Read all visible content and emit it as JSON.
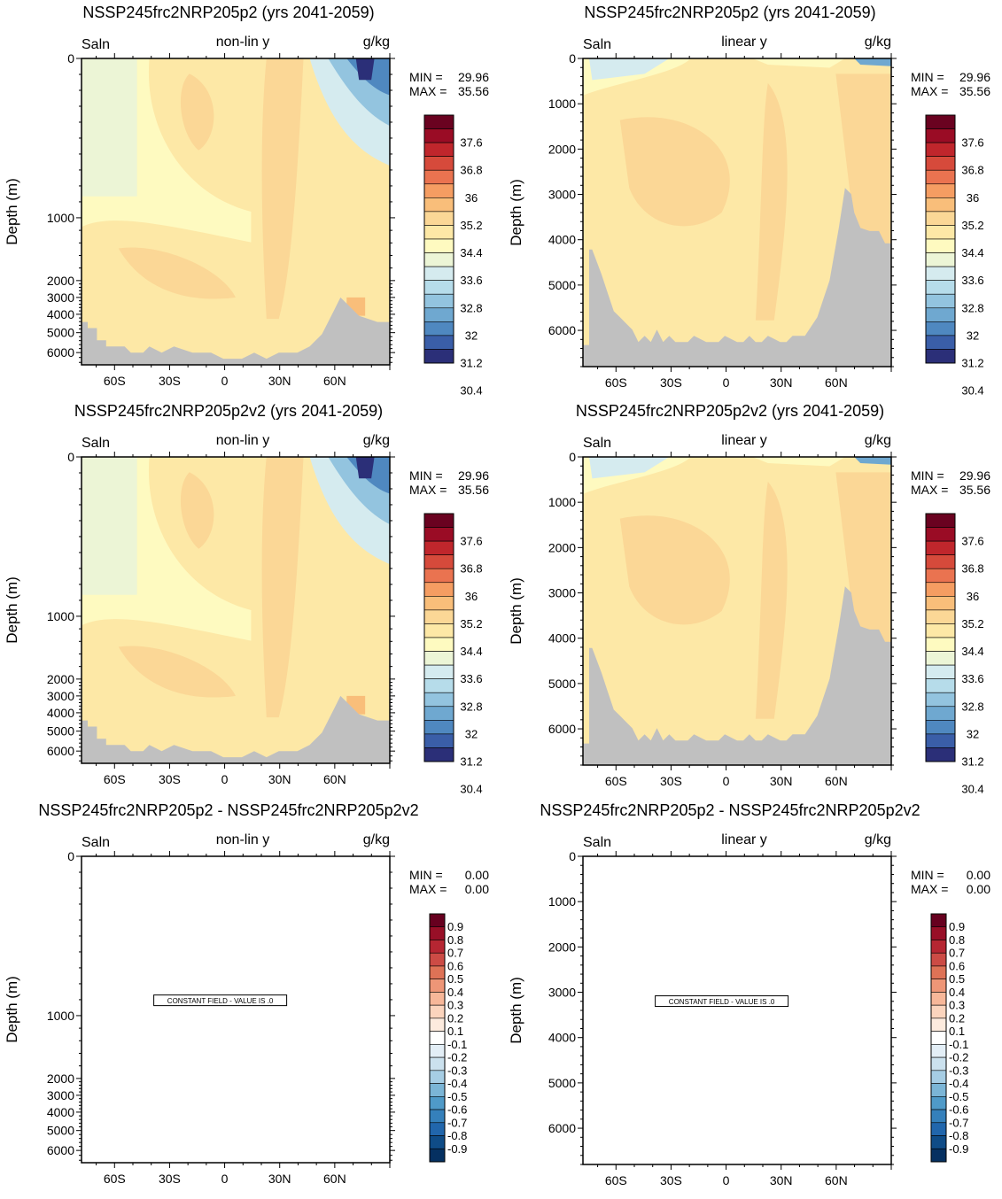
{
  "chart_data": [
    {
      "type": "heatmap",
      "title": "NSSP245frc2NRP205p2 (yrs 2041-2059)",
      "left_label": "Saln",
      "center_label": "non-lin y",
      "right_label": "g/kg",
      "ylabel": "Depth (m)",
      "y_scale": "non-linear",
      "ylim": [
        0,
        6500
      ],
      "xlim": [
        -78,
        90
      ],
      "y_ticks": [
        0,
        1000,
        2000,
        3000,
        4000,
        5000,
        6000
      ],
      "x_ticks": [
        -60,
        -30,
        0,
        30,
        60
      ],
      "x_tick_labels": [
        "60S",
        "30S",
        "0",
        "30N",
        "60N"
      ],
      "stats": {
        "min_label": "MIN =",
        "min_value": "29.96",
        "max_label": "MAX =",
        "max_value": "35.56"
      },
      "constant": false,
      "colorbar": {
        "labels": [
          "37.6",
          "36.8",
          "36",
          "35.2",
          "34.4",
          "33.6",
          "32.8",
          "32",
          "31.2",
          "30.4"
        ],
        "palette": "saln"
      }
    },
    {
      "type": "heatmap",
      "title": "NSSP245frc2NRP205p2 (yrs 2041-2059)",
      "left_label": "Saln",
      "center_label": "linear y",
      "right_label": "g/kg",
      "ylabel": "Depth (m)",
      "y_scale": "linear",
      "ylim": [
        0,
        6800
      ],
      "xlim": [
        -78,
        90
      ],
      "y_ticks": [
        0,
        1000,
        2000,
        3000,
        4000,
        5000,
        6000
      ],
      "x_ticks": [
        -60,
        -30,
        0,
        30,
        60
      ],
      "x_tick_labels": [
        "60S",
        "30S",
        "0",
        "30N",
        "60N"
      ],
      "stats": {
        "min_label": "MIN =",
        "min_value": "29.96",
        "max_label": "MAX =",
        "max_value": "35.56"
      },
      "constant": false,
      "colorbar": {
        "labels": [
          "37.6",
          "36.8",
          "36",
          "35.2",
          "34.4",
          "33.6",
          "32.8",
          "32",
          "31.2",
          "30.4"
        ],
        "palette": "saln"
      }
    },
    {
      "type": "heatmap",
      "title": "NSSP245frc2NRP205p2v2 (yrs 2041-2059)",
      "left_label": "Saln",
      "center_label": "non-lin y",
      "right_label": "g/kg",
      "ylabel": "Depth (m)",
      "y_scale": "non-linear",
      "ylim": [
        0,
        6500
      ],
      "xlim": [
        -78,
        90
      ],
      "y_ticks": [
        0,
        1000,
        2000,
        3000,
        4000,
        5000,
        6000
      ],
      "x_ticks": [
        -60,
        -30,
        0,
        30,
        60
      ],
      "x_tick_labels": [
        "60S",
        "30S",
        "0",
        "30N",
        "60N"
      ],
      "stats": {
        "min_label": "MIN =",
        "min_value": "29.96",
        "max_label": "MAX =",
        "max_value": "35.56"
      },
      "constant": false,
      "colorbar": {
        "labels": [
          "37.6",
          "36.8",
          "36",
          "35.2",
          "34.4",
          "33.6",
          "32.8",
          "32",
          "31.2",
          "30.4"
        ],
        "palette": "saln"
      }
    },
    {
      "type": "heatmap",
      "title": "NSSP245frc2NRP205p2v2 (yrs 2041-2059)",
      "left_label": "Saln",
      "center_label": "linear y",
      "right_label": "g/kg",
      "ylabel": "Depth (m)",
      "y_scale": "linear",
      "ylim": [
        0,
        6800
      ],
      "xlim": [
        -78,
        90
      ],
      "y_ticks": [
        0,
        1000,
        2000,
        3000,
        4000,
        5000,
        6000
      ],
      "x_ticks": [
        -60,
        -30,
        0,
        30,
        60
      ],
      "x_tick_labels": [
        "60S",
        "30S",
        "0",
        "30N",
        "60N"
      ],
      "stats": {
        "min_label": "MIN =",
        "min_value": "29.96",
        "max_label": "MAX =",
        "max_value": "35.56"
      },
      "constant": false,
      "colorbar": {
        "labels": [
          "37.6",
          "36.8",
          "36",
          "35.2",
          "34.4",
          "33.6",
          "32.8",
          "32",
          "31.2",
          "30.4"
        ],
        "palette": "saln"
      }
    },
    {
      "type": "heatmap",
      "title": "NSSP245frc2NRP205p2 - NSSP245frc2NRP205p2v2",
      "left_label": "Saln",
      "center_label": "non-lin y",
      "right_label": "g/kg",
      "ylabel": "Depth (m)",
      "y_scale": "non-linear",
      "ylim": [
        0,
        6500
      ],
      "xlim": [
        -78,
        90
      ],
      "y_ticks": [
        0,
        1000,
        2000,
        3000,
        4000,
        5000,
        6000
      ],
      "x_ticks": [
        -60,
        -30,
        0,
        30,
        60
      ],
      "x_tick_labels": [
        "60S",
        "30S",
        "0",
        "30N",
        "60N"
      ],
      "stats": {
        "min_label": "MIN =",
        "min_value": "0.00",
        "max_label": "MAX =",
        "max_value": "0.00"
      },
      "constant": true,
      "constant_label": "CONSTANT FIELD - VALUE IS .0",
      "colorbar": {
        "labels": [
          "0.9",
          "0.8",
          "0.7",
          "0.6",
          "0.5",
          "0.4",
          "0.3",
          "0.2",
          "0.1",
          "-0.1",
          "-0.2",
          "-0.3",
          "-0.4",
          "-0.5",
          "-0.6",
          "-0.7",
          "-0.8",
          "-0.9"
        ],
        "palette": "diff"
      }
    },
    {
      "type": "heatmap",
      "title": "NSSP245frc2NRP205p2 - NSSP245frc2NRP205p2v2",
      "left_label": "Saln",
      "center_label": "linear y",
      "right_label": "g/kg",
      "ylabel": "Depth (m)",
      "y_scale": "linear",
      "ylim": [
        0,
        6800
      ],
      "xlim": [
        -78,
        90
      ],
      "y_ticks": [
        0,
        1000,
        2000,
        3000,
        4000,
        5000,
        6000
      ],
      "x_ticks": [
        -60,
        -30,
        0,
        30,
        60
      ],
      "x_tick_labels": [
        "60S",
        "30S",
        "0",
        "30N",
        "60N"
      ],
      "stats": {
        "min_label": "MIN =",
        "min_value": "0.00",
        "max_label": "MAX =",
        "max_value": "0.00"
      },
      "constant": true,
      "constant_label": "CONSTANT FIELD - VALUE IS .0",
      "colorbar": {
        "labels": [
          "0.9",
          "0.8",
          "0.7",
          "0.6",
          "0.5",
          "0.4",
          "0.3",
          "0.2",
          "0.1",
          "-0.1",
          "-0.2",
          "-0.3",
          "-0.4",
          "-0.5",
          "-0.6",
          "-0.7",
          "-0.8",
          "-0.9"
        ],
        "palette": "diff"
      }
    }
  ],
  "colors": {
    "land": "#c0c0c0",
    "saln_palette": [
      "#6a0220",
      "#9a0c25",
      "#c0262c",
      "#d64a3b",
      "#ea7350",
      "#f59d62",
      "#f9be7a",
      "#fbd796",
      "#fde8a6",
      "#fefac0",
      "#ecf5d6",
      "#d5ebef",
      "#b6dcea",
      "#93c4df",
      "#6fa8d0",
      "#4f88c0",
      "#3a5ea8",
      "#2b2f78"
    ],
    "diff_palette": [
      "#67001f",
      "#980f27",
      "#b62632",
      "#cc4b45",
      "#de7256",
      "#ee9677",
      "#f7b799",
      "#fbd4bd",
      "#fdebde",
      "#ffffff",
      "#e3eef6",
      "#cbe1ee",
      "#a6cde4",
      "#7bb5d6",
      "#4f9ac8",
      "#3580bb",
      "#2166ac",
      "#0f4c87",
      "#053061"
    ]
  }
}
